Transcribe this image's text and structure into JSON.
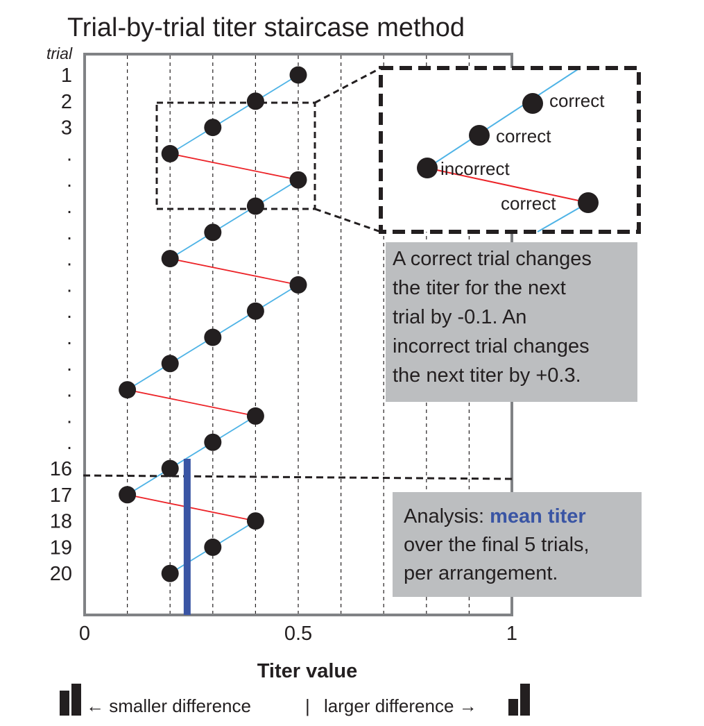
{
  "chart_data": {
    "type": "line",
    "title": "Trial-by-trial titer staircase method",
    "xlabel": "Titer value",
    "ylabel": "trial",
    "xlim": [
      0,
      1
    ],
    "x_ticks": [
      "0",
      "0.5",
      "1"
    ],
    "x_grid": [
      0.1,
      0.2,
      0.3,
      0.4,
      0.5,
      0.6,
      0.7,
      0.8,
      0.9
    ],
    "y_tick_labels": [
      "1",
      "2",
      "3",
      ".",
      ".",
      ".",
      ".",
      ".",
      ".",
      ".",
      ".",
      ".",
      ".",
      ".",
      ".",
      "16",
      "17",
      "18",
      "19",
      "20"
    ],
    "series": [
      {
        "trial": [
          1,
          2,
          3,
          4,
          5,
          6,
          7,
          8,
          9,
          10,
          11,
          12,
          13,
          14,
          15,
          16,
          17,
          18,
          19,
          20
        ],
        "titer": [
          0.5,
          0.4,
          0.3,
          0.2,
          0.5,
          0.4,
          0.3,
          0.2,
          0.5,
          0.4,
          0.3,
          0.2,
          0.1,
          0.4,
          0.3,
          0.2,
          0.1,
          0.4,
          0.3,
          0.2
        ],
        "outcome": [
          "correct",
          "correct",
          "correct",
          "incorrect",
          "correct",
          "correct",
          "correct",
          "incorrect",
          "correct",
          "correct",
          "correct",
          "correct",
          "incorrect",
          "correct",
          "correct",
          "correct",
          "incorrect",
          "correct",
          "correct",
          "correct"
        ]
      }
    ],
    "colors": {
      "correct": "#4eb3e6",
      "incorrect": "#ec2227",
      "point": "#231f20",
      "mean": "#3a55a4"
    },
    "mean_titer_final_5": 0.24,
    "cutoff_after_trial": 15,
    "inset": {
      "labels": [
        "correct",
        "correct",
        "incorrect",
        "correct"
      ]
    }
  },
  "callouts": {
    "rule_lines": [
      "A correct trial changes",
      "the titer for the next",
      "trial by -0.1. An",
      "incorrect trial changes",
      "the next titer by +0.3."
    ],
    "analysis_prefix": "Analysis: ",
    "analysis_highlight": "mean titer",
    "analysis_lines": [
      "over the final 5 trials,",
      "per arrangement."
    ]
  },
  "bottom_legend": {
    "smaller": "←  smaller difference",
    "divider": "|",
    "larger": "larger difference →",
    "left_icon": "small-bars-icon",
    "right_icon": "large-bars-icon"
  }
}
